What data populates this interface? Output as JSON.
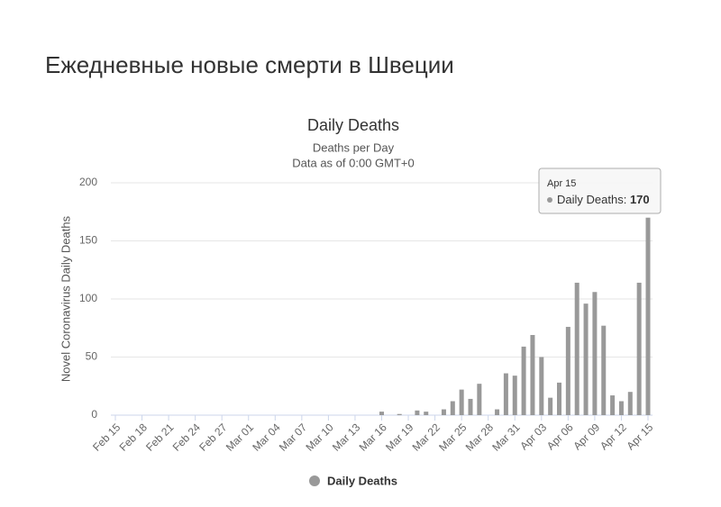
{
  "header": {
    "title": "Ежедневные новые смерти в Швеции"
  },
  "chart_data": {
    "type": "bar",
    "title": "Daily Deaths",
    "subtitles": [
      "Deaths per Day",
      "Data as of 0:00 GMT+0"
    ],
    "y_label": "Novel Coronavirus Daily Deaths",
    "categories": [
      "Feb 15",
      null,
      null,
      "Feb 18",
      null,
      null,
      "Feb 21",
      null,
      null,
      "Feb 24",
      null,
      null,
      "Feb 27",
      null,
      null,
      "Mar 01",
      null,
      null,
      "Mar 04",
      null,
      null,
      "Mar 07",
      null,
      null,
      "Mar 10",
      null,
      null,
      "Mar 13",
      null,
      null,
      "Mar 16",
      null,
      null,
      "Mar 19",
      null,
      null,
      "Mar 22",
      null,
      null,
      "Mar 25",
      null,
      null,
      "Mar 28",
      null,
      null,
      "Mar 31",
      null,
      null,
      "Apr 03",
      null,
      null,
      "Apr 06",
      null,
      null,
      "Apr 09",
      null,
      null,
      "Apr 12",
      null,
      null,
      "Apr 15"
    ],
    "series": [
      {
        "name": "Daily Deaths",
        "color": "#999999",
        "values": [
          0,
          0,
          0,
          0,
          0,
          0,
          0,
          0,
          0,
          0,
          0,
          0,
          0,
          0,
          0,
          0,
          0,
          0,
          0,
          0,
          0,
          0,
          0,
          0,
          0,
          0,
          0,
          0,
          0,
          0,
          3,
          0,
          1,
          0,
          4,
          3,
          0,
          5,
          12,
          22,
          14,
          27,
          0,
          5,
          36,
          34,
          59,
          69,
          50,
          15,
          28,
          76,
          114,
          96,
          106,
          77,
          17,
          12,
          20,
          114,
          170
        ]
      }
    ],
    "ylim": [
      0,
      200
    ],
    "yticks": [
      0,
      50,
      100,
      150,
      200
    ],
    "grid": true,
    "tooltip": {
      "category": "Apr 15"
    }
  }
}
